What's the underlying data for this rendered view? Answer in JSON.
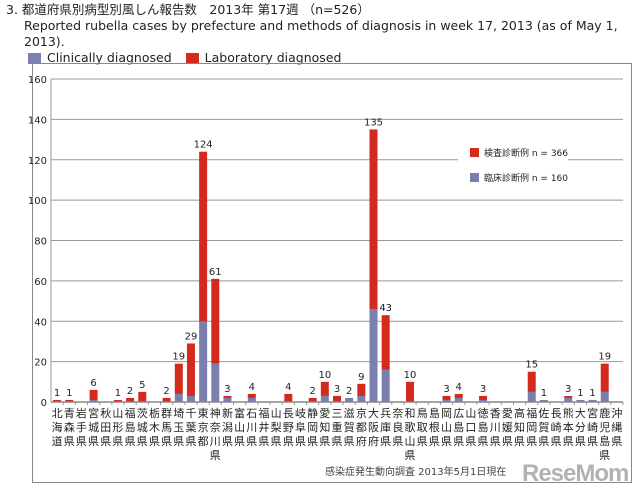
{
  "header": {
    "title_jp": "3. 都道府県別病型別風しん報告数　2013年 第17週 （n=526）",
    "title_en": "Reported rubella cases by prefecture and methods of diagnosis in week 17, 2013 (as of May 1, 2013).",
    "legend": [
      {
        "label": "Clinically diagnosed",
        "color": "#7b7fb0"
      },
      {
        "label": "Laboratory diagnosed",
        "color": "#d42a1e"
      }
    ]
  },
  "chart_data": {
    "type": "bar",
    "stacked": true,
    "ylim": [
      0,
      160
    ],
    "yticks": [
      0,
      20,
      40,
      60,
      80,
      100,
      120,
      140,
      160
    ],
    "grid": true,
    "legend_placement": "top-right",
    "categories": [
      "北海道",
      "青森県",
      "岩手県",
      "宮城県",
      "秋田県",
      "山形県",
      "福島県",
      "茨城県",
      "栃木県",
      "群馬県",
      "埼玉県",
      "千葉県",
      "東京都",
      "神奈川県",
      "新潟県",
      "富山県",
      "石川県",
      "福井県",
      "山梨県",
      "長野県",
      "岐阜県",
      "静岡県",
      "愛知県",
      "三重県",
      "滋賀県",
      "京都府",
      "大阪府",
      "兵庫県",
      "奈良県",
      "和歌山県",
      "鳥取県",
      "島根県",
      "岡山県",
      "広島県",
      "山口県",
      "徳島県",
      "香川県",
      "愛媛県",
      "高知県",
      "福岡県",
      "佐賀県",
      "長崎県",
      "熊本県",
      "大分県",
      "宮崎県",
      "鹿児島県",
      "沖縄県"
    ],
    "totals": [
      1,
      1,
      0,
      6,
      0,
      1,
      2,
      5,
      0,
      2,
      19,
      29,
      124,
      61,
      3,
      0,
      4,
      0,
      0,
      4,
      0,
      2,
      10,
      3,
      2,
      9,
      135,
      43,
      0,
      10,
      0,
      0,
      3,
      4,
      0,
      3,
      0,
      0,
      0,
      15,
      1,
      0,
      3,
      1,
      1,
      19,
      0
    ],
    "series": [
      {
        "name": "臨床診断例 n = 160",
        "color": "#7b7fb0",
        "values": [
          0,
          0,
          0,
          1,
          0,
          0,
          0,
          0,
          0,
          0,
          4,
          3,
          40,
          19,
          2,
          0,
          2,
          0,
          0,
          0,
          0,
          0,
          3,
          0,
          2,
          3,
          46,
          16,
          0,
          0,
          0,
          0,
          1,
          2,
          0,
          1,
          0,
          0,
          0,
          5,
          1,
          0,
          2,
          1,
          1,
          5,
          0
        ]
      },
      {
        "name": "検査診断例 n = 366",
        "color": "#d42a1e",
        "values": [
          1,
          1,
          0,
          5,
          0,
          1,
          2,
          5,
          0,
          2,
          15,
          26,
          84,
          42,
          1,
          0,
          2,
          0,
          0,
          4,
          0,
          2,
          7,
          3,
          0,
          6,
          89,
          27,
          0,
          10,
          0,
          0,
          2,
          2,
          0,
          2,
          0,
          0,
          0,
          10,
          0,
          0,
          1,
          0,
          0,
          14,
          0
        ]
      }
    ]
  },
  "source": "感染症発生動向調査 2013年5月1日現在",
  "watermark": "ReseMom"
}
